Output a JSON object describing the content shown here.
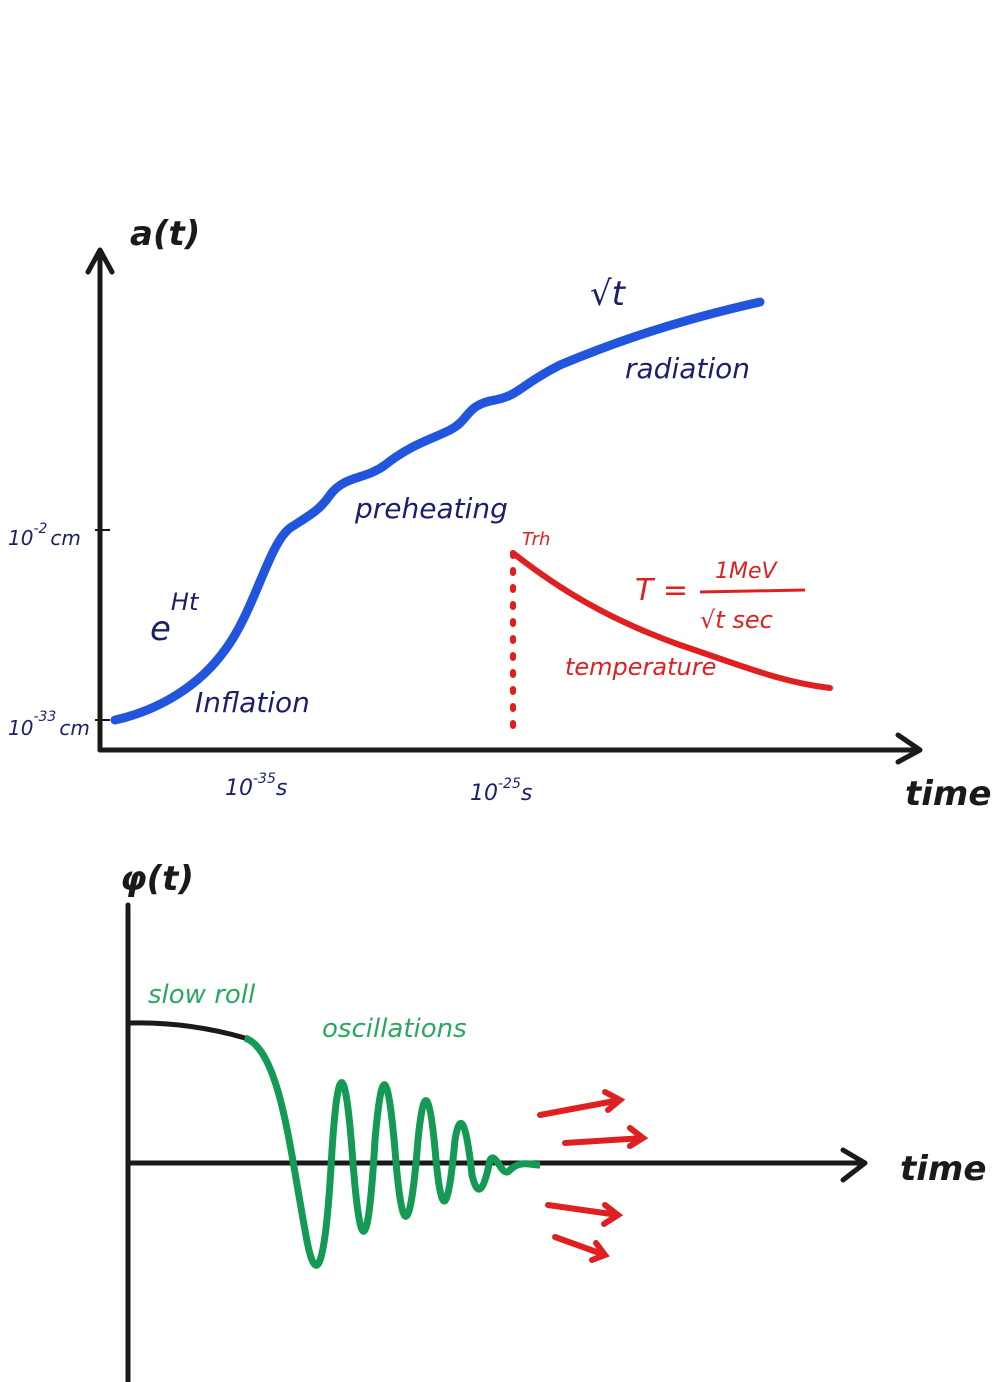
{
  "top": {
    "y_label": "a(t)",
    "x_label": "time",
    "y_ticks": [
      {
        "base": "10",
        "exp": "-2",
        "unit": "cm"
      },
      {
        "base": "10",
        "exp": "-33",
        "unit": "cm"
      }
    ],
    "x_ticks": [
      {
        "base": "10",
        "exp": "-35",
        "unit": "s"
      },
      {
        "base": "10",
        "exp": "-25",
        "unit": "s"
      }
    ],
    "annotations": {
      "sqrt_t": "√t",
      "radiation": "radiation",
      "preheating": "preheating",
      "exp_base": "e",
      "exp_power": "Ht",
      "inflation": "Inflation",
      "t_rh": "Trh",
      "formula_lhs": "T =",
      "formula_num": "1MeV",
      "formula_den": "√t sec",
      "temperature": "temperature"
    }
  },
  "bottom": {
    "y_label": "φ(t)",
    "x_label": "time",
    "slow_roll": "slow roll",
    "oscillations": "oscillations"
  }
}
